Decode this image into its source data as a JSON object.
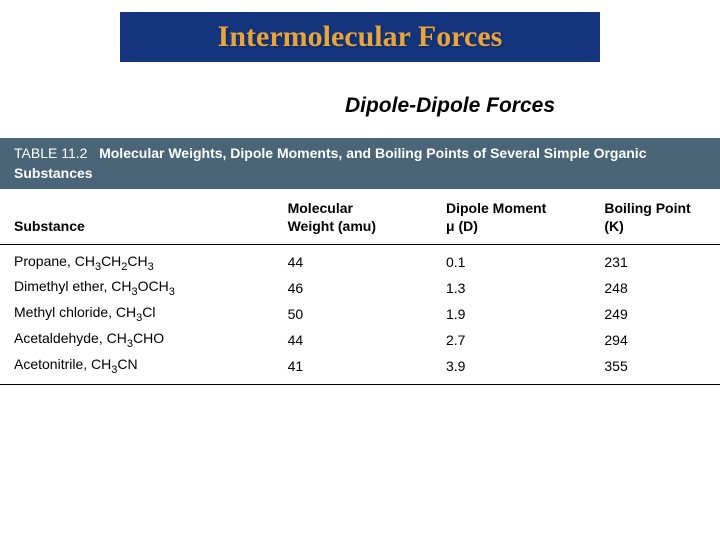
{
  "title": "Intermolecular Forces",
  "subtitle": "Dipole-Dipole Forces",
  "table": {
    "number": "TABLE 11.2",
    "caption": "Molecular Weights, Dipole Moments, and Boiling Points of Several Simple Organic Substances",
    "columns": {
      "substance": "Substance",
      "weight_l1": "Molecular",
      "weight_l2": "Weight (amu)",
      "dipole_l1": "Dipole Moment",
      "dipole_l2": "μ (D)",
      "boiling_l1": "Boiling Point",
      "boiling_l2": "(K)"
    },
    "rows": [
      {
        "substance_html": "Propane, CH<span class='sub'>3</span>CH<span class='sub'>2</span>CH<span class='sub'>3</span>",
        "weight": "44",
        "dipole": "0.1",
        "boiling": "231"
      },
      {
        "substance_html": "Dimethyl ether, CH<span class='sub'>3</span>OCH<span class='sub'>3</span>",
        "weight": "46",
        "dipole": "1.3",
        "boiling": "248"
      },
      {
        "substance_html": "Methyl chloride, CH<span class='sub'>3</span>Cl",
        "weight": "50",
        "dipole": "1.9",
        "boiling": "249"
      },
      {
        "substance_html": "Acetaldehyde, CH<span class='sub'>3</span>CHO",
        "weight": "44",
        "dipole": "2.7",
        "boiling": "294"
      },
      {
        "substance_html": "Acetonitrile, CH<span class='sub'>3</span>CN",
        "weight": "41",
        "dipole": "3.9",
        "boiling": "355"
      }
    ]
  },
  "colors": {
    "title_bg": "#14347e",
    "title_text": "#e8a53a",
    "table_header_bg": "#4a6578",
    "table_header_text": "#ffffff",
    "body_bg": "#ffffff",
    "text": "#000000",
    "border": "#000000"
  },
  "typography": {
    "title_fontsize": 30,
    "subtitle_fontsize": 21,
    "table_header_fontsize": 14,
    "table_body_fontsize": 14,
    "title_family": "Georgia",
    "body_family": "Arial"
  }
}
